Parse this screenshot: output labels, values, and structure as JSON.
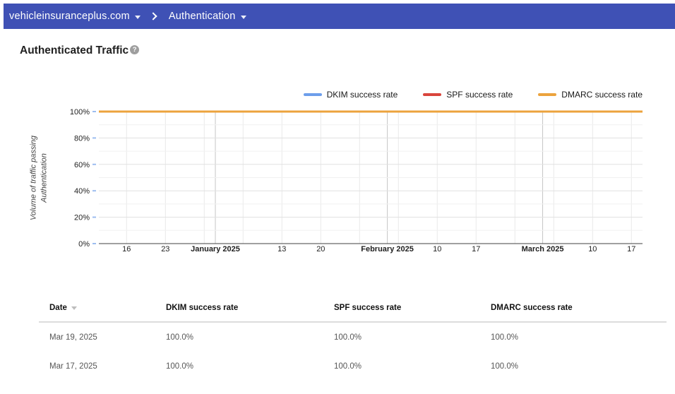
{
  "nav": {
    "domain_selector": "vehicleinsuranceplus.com",
    "section_selector": "Authentication",
    "bar_color": "#3f51b5"
  },
  "page": {
    "title": "Authenticated Traffic",
    "help_icon": "question-mark"
  },
  "chart_data": {
    "type": "line",
    "title": "Authenticated Traffic",
    "ylabel": "Volume of traffic passing Authentication",
    "ylim": [
      0,
      100
    ],
    "grid": true,
    "legend_position": "top-right",
    "y_tick_values": [
      0,
      20,
      40,
      60,
      80,
      100
    ],
    "y_tick_labels": [
      "0%",
      "20%",
      "40%",
      "60%",
      "80%",
      "100%"
    ],
    "y_minor_step": 10,
    "x_tick_labels": [
      "16",
      "23",
      "January 2025",
      "13",
      "20",
      "February 2025",
      "10",
      "17",
      "March 2025",
      "10",
      "17"
    ],
    "x_gridlines": [
      {
        "f": 0.051,
        "label": "16"
      },
      {
        "f": 0.1225,
        "label": "23"
      },
      {
        "f": 0.1939
      },
      {
        "f": 0.2143,
        "label": "January 2025",
        "month": true
      },
      {
        "f": 0.2653
      },
      {
        "f": 0.3367,
        "label": "13"
      },
      {
        "f": 0.4082,
        "label": "20"
      },
      {
        "f": 0.4796
      },
      {
        "f": 0.5306,
        "label": "February 2025",
        "month": true
      },
      {
        "f": 0.551
      },
      {
        "f": 0.6224,
        "label": "10"
      },
      {
        "f": 0.6939,
        "label": "17"
      },
      {
        "f": 0.7653
      },
      {
        "f": 0.8163,
        "label": "March 2025",
        "month": true
      },
      {
        "f": 0.8367
      },
      {
        "f": 0.9082,
        "label": "10"
      },
      {
        "f": 0.9796,
        "label": "17"
      }
    ],
    "series": [
      {
        "name": "DKIM success rate",
        "color": "#6d9eeb",
        "value": 100
      },
      {
        "name": "SPF success rate",
        "color": "#d9453c",
        "value": 100
      },
      {
        "name": "DMARC success rate",
        "color": "#eca33d",
        "value": 100
      }
    ]
  },
  "table": {
    "columns": [
      "Date",
      "DKIM success rate",
      "SPF success rate",
      "DMARC success rate"
    ],
    "sorted_by": "Date",
    "sort_direction": "desc",
    "rows": [
      {
        "cells": [
          "Mar 19, 2025",
          "100.0%",
          "100.0%",
          "100.0%"
        ]
      },
      {
        "cells": [
          "Mar 17, 2025",
          "100.0%",
          "100.0%",
          "100.0%"
        ]
      }
    ]
  }
}
